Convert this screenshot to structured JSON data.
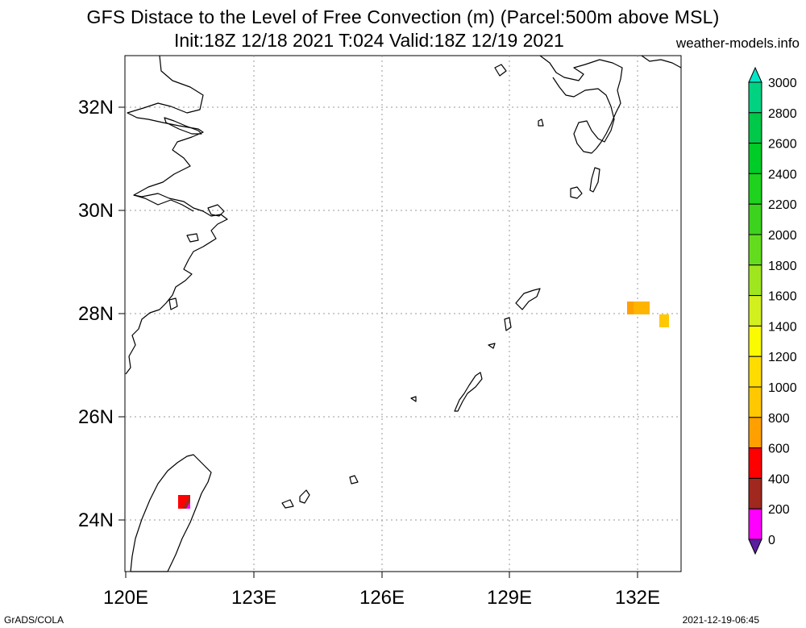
{
  "header": {
    "title_line1": "GFS Distace to the Level of Free Convection (m) (Parcel:500m above MSL)",
    "title_line2": "Init:18Z 12/18 2021 T:024 Valid:18Z 12/19 2021",
    "site": "weather-models.info"
  },
  "footer": {
    "left": "GrADS/COLA",
    "right": "2021-12-19-06:45"
  },
  "map": {
    "lon_range": [
      120,
      133
    ],
    "lat_range": [
      23,
      33
    ],
    "grid": "dotted",
    "x_ticks": [
      "120E",
      "123E",
      "126E",
      "129E",
      "132E"
    ],
    "y_ticks": [
      "24N",
      "26N",
      "28N",
      "30N",
      "32N"
    ],
    "coastline_color": "#000000"
  },
  "colorbar": {
    "labels": [
      "3000",
      "2800",
      "2600",
      "2400",
      "2200",
      "2000",
      "1800",
      "1600",
      "1400",
      "1200",
      "1000",
      "800",
      "600",
      "400",
      "200",
      "0"
    ],
    "colors": [
      "#00e6c8",
      "#00d282",
      "#00c848",
      "#00cc28",
      "#1ed21e",
      "#3cd21e",
      "#64dc1e",
      "#a0e61e",
      "#d2f01e",
      "#fafa00",
      "#ffdc00",
      "#ffc800",
      "#ffa000",
      "#ff0000",
      "#a0281e",
      "#ff00ff",
      "#5a1ea0"
    ]
  }
}
